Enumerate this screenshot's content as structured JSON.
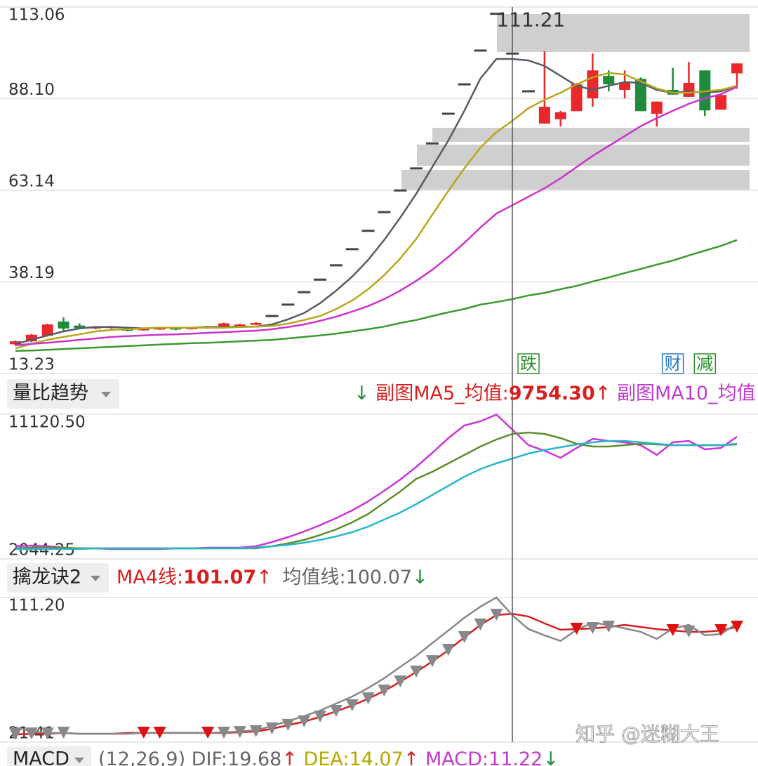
{
  "chart_data": [
    {
      "type": "candlestick",
      "ylim": [
        13.23,
        113.06
      ],
      "yticks": [
        113.06,
        {
          "value": 88.1,
          "label": "88.10"
        },
        63.14,
        38.19,
        13.23
      ],
      "grid": true,
      "up_color": "#e8282b",
      "down_color": "#1e8c3a",
      "flat_color": "#444444",
      "open": [
        21.2,
        22.0,
        23.5,
        27.4,
        26.3,
        25.5,
        25.6,
        25.4,
        25.0,
        25.3,
        25.7,
        25.3,
        25.5,
        26.0,
        26.2,
        26.5,
        28.9,
        32.0,
        35.4,
        38.8,
        42.7,
        47.1,
        52.1,
        57.2,
        63.1,
        69.1,
        75.9,
        84.0,
        92.0,
        101.2,
        111.21,
        100.4,
        90.1,
        81.3,
        82.5,
        84.7,
        88.2,
        94.3,
        90.5,
        93.5,
        84.0,
        90.5,
        88.6,
        95.8,
        85.1,
        95.0
      ],
      "high": [
        22.2,
        24.0,
        26.8,
        28.5,
        26.9,
        26.1,
        26.2,
        25.6,
        25.8,
        25.8,
        25.9,
        25.9,
        26.2,
        27.1,
        26.8,
        27.2,
        28.9,
        32.0,
        35.4,
        38.8,
        42.7,
        47.1,
        52.1,
        57.2,
        63.1,
        69.1,
        75.9,
        84.0,
        92.0,
        101.2,
        111.21,
        100.4,
        90.1,
        101.0,
        84.8,
        92.4,
        100.4,
        95.8,
        95.8,
        93.9,
        87.3,
        96.5,
        98.1,
        95.8,
        89.1,
        97.7
      ],
      "low": [
        20.8,
        21.8,
        23.3,
        24.8,
        25.3,
        25.3,
        25.4,
        24.7,
        24.9,
        25.1,
        25.0,
        25.2,
        25.4,
        25.9,
        26.0,
        26.4,
        28.9,
        32.0,
        35.4,
        38.8,
        42.7,
        47.1,
        52.1,
        57.2,
        63.1,
        69.1,
        75.9,
        84.0,
        92.0,
        101.2,
        111.21,
        100.4,
        90.1,
        81.3,
        80.5,
        84.7,
        85.9,
        90.1,
        88.2,
        84.7,
        80.5,
        89.2,
        88.6,
        83.4,
        85.1,
        90.8
      ],
      "close": [
        22.0,
        23.8,
        26.6,
        25.5,
        25.6,
        25.9,
        26.0,
        24.9,
        25.5,
        25.6,
        25.2,
        25.7,
        26.0,
        26.9,
        26.6,
        27.0,
        28.9,
        32.0,
        35.4,
        38.8,
        42.7,
        47.1,
        52.1,
        57.2,
        63.1,
        69.1,
        75.9,
        84.0,
        92.0,
        101.2,
        111.21,
        100.4,
        90.1,
        85.9,
        84.4,
        92.0,
        95.8,
        92.0,
        92.4,
        84.7,
        87.3,
        89.2,
        92.4,
        84.9,
        89.1,
        97.7
      ],
      "series": [
        {
          "color": "#555b66",
          "values": [
            21.3,
            22.4,
            23.6,
            24.7,
            25.5,
            25.9,
            25.9,
            25.7,
            25.5,
            25.7,
            25.7,
            25.7,
            25.9,
            25.9,
            26.0,
            26.0,
            26.6,
            28.0,
            29.7,
            32.4,
            35.8,
            39.6,
            44.2,
            49.6,
            55.7,
            62.2,
            69.5,
            76.7,
            84.8,
            93.6,
            98.9,
            98.9,
            98.5,
            97.0,
            94.3,
            91.6,
            90.5,
            91.6,
            92.6,
            92.4,
            90.5,
            89.7,
            90.1,
            89.7,
            90.1,
            91.6
          ]
        },
        {
          "color": "#b5a81a",
          "values": [
            20.1,
            21.3,
            22.4,
            23.2,
            23.9,
            24.7,
            25.1,
            25.3,
            25.5,
            25.7,
            25.7,
            25.7,
            25.7,
            25.7,
            25.9,
            26.0,
            26.2,
            26.8,
            27.8,
            28.9,
            30.8,
            33.1,
            36.2,
            40.0,
            44.6,
            49.9,
            56.5,
            63.0,
            69.1,
            74.8,
            79.0,
            82.1,
            85.5,
            87.8,
            89.7,
            92.0,
            93.9,
            95.1,
            94.7,
            92.8,
            90.9,
            89.7,
            89.7,
            90.1,
            90.5,
            91.6
          ]
        },
        {
          "color": "#cc33cc",
          "values": [
            20.9,
            21.3,
            21.6,
            22.0,
            22.4,
            22.8,
            23.2,
            23.4,
            23.6,
            23.8,
            23.9,
            24.1,
            24.3,
            24.5,
            24.7,
            24.9,
            25.3,
            25.9,
            26.6,
            27.6,
            28.7,
            30.1,
            31.6,
            33.5,
            35.8,
            38.5,
            41.5,
            45.0,
            48.8,
            53.0,
            56.8,
            59.1,
            61.4,
            63.7,
            66.4,
            69.5,
            72.5,
            75.2,
            77.9,
            80.6,
            82.8,
            84.8,
            86.7,
            88.2,
            89.3,
            91.3
          ]
        },
        {
          "color": "#3a9a2e",
          "values": [
            19.4,
            19.5,
            19.7,
            19.9,
            20.1,
            20.3,
            20.5,
            20.7,
            20.9,
            21.1,
            21.3,
            21.5,
            21.6,
            21.8,
            22.0,
            22.2,
            22.4,
            22.8,
            23.2,
            23.6,
            24.1,
            24.7,
            25.3,
            26.0,
            27.0,
            27.8,
            28.9,
            29.9,
            30.8,
            32.0,
            32.7,
            33.5,
            34.5,
            35.2,
            36.2,
            37.1,
            38.3,
            39.4,
            40.6,
            41.7,
            42.9,
            44.0,
            45.4,
            46.7,
            48.0,
            49.6
          ]
        }
      ],
      "events": [
        null,
        null,
        null,
        null,
        null,
        null,
        null,
        null,
        null,
        null,
        null,
        null,
        null,
        null,
        null,
        null,
        null,
        null,
        null,
        null,
        null,
        null,
        null,
        null,
        null,
        null,
        null,
        null,
        null,
        null,
        null,
        null,
        {
          "text": "跌",
          "color": "#2d8f2d"
        },
        null,
        null,
        null,
        null,
        null,
        null,
        null,
        null,
        {
          "text": "财",
          "color": "#2a78c8"
        },
        null,
        {
          "text": "减",
          "color": "#2d8f2d"
        },
        null,
        null
      ]
    },
    {
      "type": "line",
      "indicator": "量比趋势",
      "header": [
        "↓",
        "副图MA5_均值:",
        "9754.30",
        "↑",
        "副图MA10_均值"
      ],
      "ylim": [
        2044.25,
        11120.5
      ],
      "yticks": [
        {
          "value": 11120.5,
          "label": "11120.50"
        },
        2044.25
      ],
      "series": [
        {
          "color": "#cc33dd",
          "values": [
            2837,
            2881,
            2837,
            2749,
            2705,
            2705,
            2661,
            2661,
            2661,
            2661,
            2705,
            2705,
            2749,
            2749,
            2749,
            2837,
            3101,
            3410,
            3762,
            4159,
            4599,
            5084,
            5657,
            6318,
            7023,
            7816,
            8697,
            9622,
            10415,
            10680,
            11100,
            10151,
            9182,
            8829,
            8389,
            9005,
            9578,
            9446,
            9358,
            9182,
            8565,
            9358,
            9446,
            8917,
            9005,
            9710
          ]
        },
        {
          "color": "#5b8f2a",
          "values": [
            2705,
            2749,
            2749,
            2749,
            2705,
            2705,
            2705,
            2705,
            2705,
            2705,
            2705,
            2705,
            2705,
            2705,
            2705,
            2705,
            2837,
            3013,
            3234,
            3542,
            3895,
            4335,
            4864,
            5569,
            6274,
            7067,
            7507,
            8036,
            8565,
            9094,
            9534,
            9887,
            9975,
            9887,
            9622,
            9270,
            9094,
            9094,
            9182,
            9270,
            9226,
            9182,
            9182,
            9182,
            9182,
            9226
          ]
        },
        {
          "color": "#2bb5cc",
          "values": [
            2661,
            2661,
            2661,
            2661,
            2661,
            2705,
            2705,
            2705,
            2705,
            2705,
            2705,
            2705,
            2705,
            2705,
            2705,
            2749,
            2837,
            2925,
            3057,
            3234,
            3454,
            3718,
            4071,
            4511,
            4952,
            5481,
            6053,
            6626,
            7199,
            7684,
            8036,
            8345,
            8653,
            8873,
            9050,
            9226,
            9358,
            9446,
            9446,
            9358,
            9270,
            9182,
            9182,
            9182,
            9182,
            9270
          ]
        }
      ]
    },
    {
      "type": "line",
      "indicator": "擒龙诀2",
      "header": [
        "MA4线:",
        "↑",
        "均值线:",
        "↓"
      ],
      "ylim": [
        21.41,
        111.2
      ],
      "yticks": [
        {
          "value": 111.2,
          "label": "111.20"
        },
        21.41
      ],
      "series": [
        {
          "color": "#d81f1f",
          "values": [
            26.2,
            26.6,
            26.6,
            27.1,
            26.6,
            26.6,
            26.6,
            27.1,
            27.1,
            27.1,
            27.1,
            27.1,
            27.1,
            27.1,
            27.5,
            28.0,
            29.7,
            31.9,
            34.1,
            37.1,
            40.6,
            44.1,
            48.4,
            53.2,
            58.9,
            65.0,
            71.5,
            78.5,
            86.4,
            94.2,
            100.3,
            101.07,
            99.4,
            95.1,
            91.2,
            91.6,
            92.0,
            92.9,
            94.2,
            92.9,
            91.6,
            90.7,
            89.9,
            89.9,
            90.7,
            92.9
          ]
        },
        {
          "color": "#888888",
          "values": [
            30.6,
            28.0,
            27.1,
            27.1,
            26.6,
            26.6,
            26.6,
            26.6,
            27.1,
            27.1,
            27.1,
            27.1,
            27.1,
            27.5,
            28.0,
            28.8,
            31.4,
            34.5,
            37.5,
            41.0,
            45.4,
            49.7,
            55.0,
            61.1,
            68.1,
            75.0,
            82.9,
            90.7,
            98.6,
            105.5,
            111.2,
            100.07,
            91.6,
            87.7,
            84.2,
            91.2,
            95.5,
            94.2,
            92.0,
            89.9,
            85.5,
            92.0,
            94.2,
            87.7,
            88.5,
            95.1
          ]
        }
      ],
      "signals": [
        "#888888",
        "#888888",
        "#888888",
        "#888888",
        null,
        null,
        null,
        null,
        "#e01010",
        "#e01010",
        null,
        null,
        "#e01010",
        "#888888",
        "#888888",
        "#888888",
        "#888888",
        "#888888",
        "#888888",
        "#888888",
        "#888888",
        "#888888",
        "#888888",
        "#888888",
        "#888888",
        "#888888",
        "#888888",
        "#888888",
        "#888888",
        "#888888",
        "#888888",
        null,
        null,
        null,
        null,
        "#e01010",
        "#888888",
        "#888888",
        null,
        null,
        null,
        "#e01010",
        "#888888",
        null,
        "#e01010",
        "#e01010"
      ]
    }
  ],
  "macd": {
    "indicator": "MACD",
    "params": "(12,26,9)",
    "items": [
      "DIF:",
      "19.68",
      "↑",
      "DEA:",
      "14.07",
      "↑",
      "MACD:",
      "11.22",
      "↓"
    ]
  },
  "watermark": "知乎 @迷糊大王"
}
